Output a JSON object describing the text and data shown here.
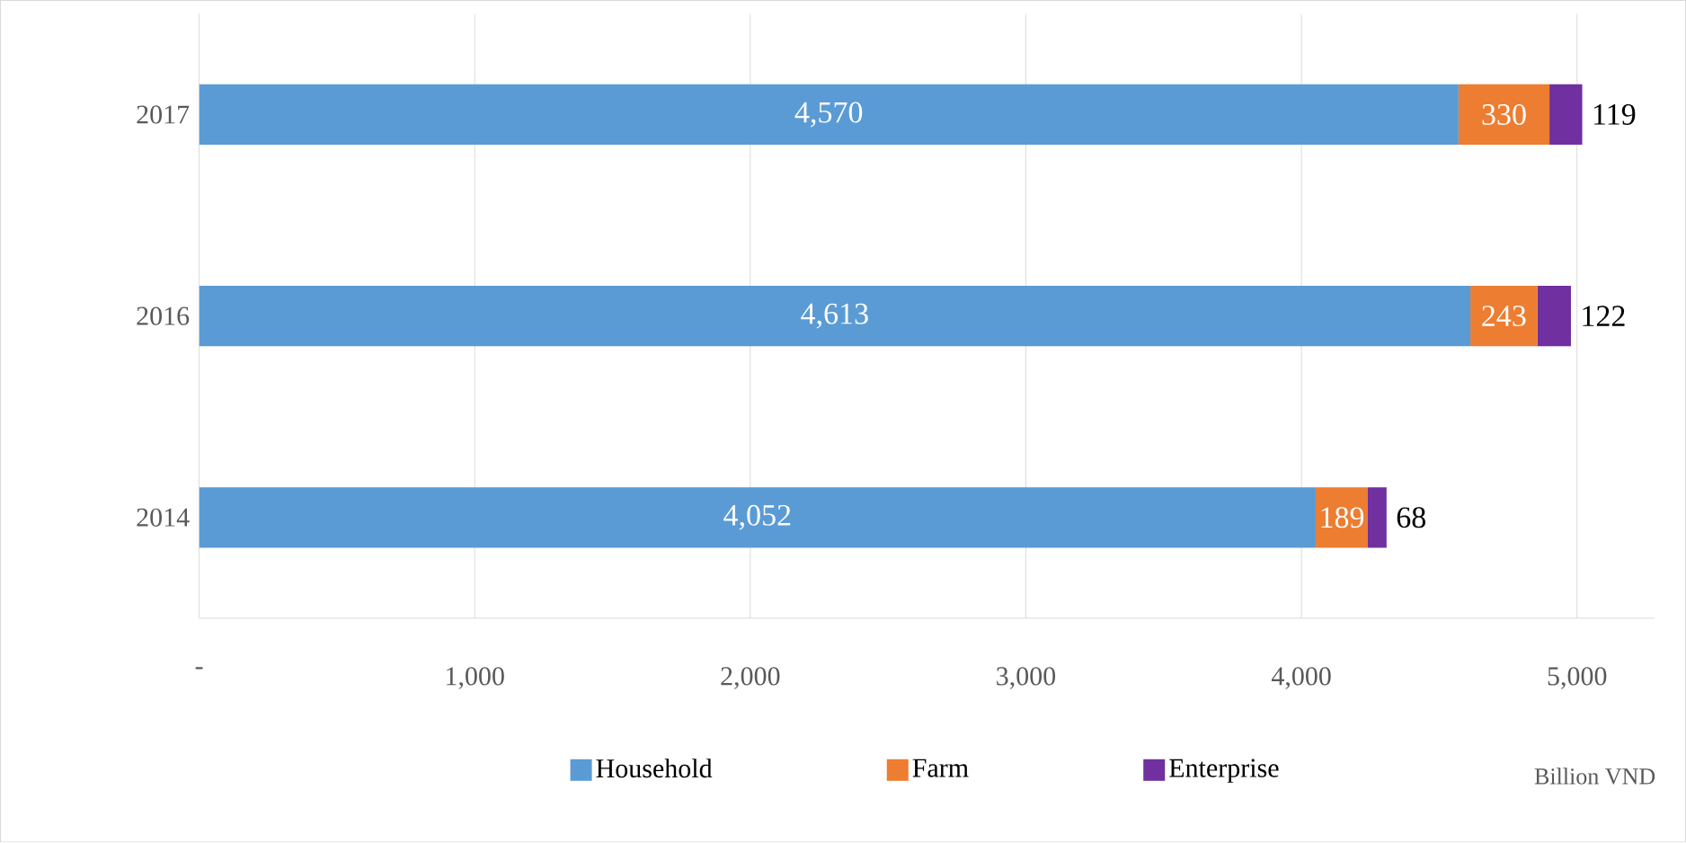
{
  "chart_data": {
    "type": "bar",
    "orientation": "horizontal",
    "stacked": true,
    "categories": [
      "2017",
      "2016",
      "2014"
    ],
    "series": [
      {
        "name": "Household",
        "color": "#5b9bd5",
        "values": [
          4570,
          4613,
          4052
        ],
        "value_labels": [
          "4,570",
          "4,613",
          "4,052"
        ]
      },
      {
        "name": "Farm",
        "color": "#ed7d31",
        "values": [
          330,
          243,
          189
        ],
        "value_labels": [
          "330",
          "243",
          "189"
        ]
      },
      {
        "name": "Enterprise",
        "color": "#7030a0",
        "values": [
          119,
          122,
          68
        ],
        "value_labels": [
          "119",
          "122",
          "68"
        ]
      }
    ],
    "xlim": [
      0,
      5280
    ],
    "xticks": [
      {
        "value": 0,
        "label": "-"
      },
      {
        "value": 1000,
        "label": "1,000"
      },
      {
        "value": 2000,
        "label": "2,000"
      },
      {
        "value": 3000,
        "label": "3,000"
      },
      {
        "value": 4000,
        "label": "4,000"
      },
      {
        "value": 5000,
        "label": "5,000"
      }
    ],
    "xlabel": "Billion VND",
    "grid": "x",
    "legend": "bottom"
  }
}
